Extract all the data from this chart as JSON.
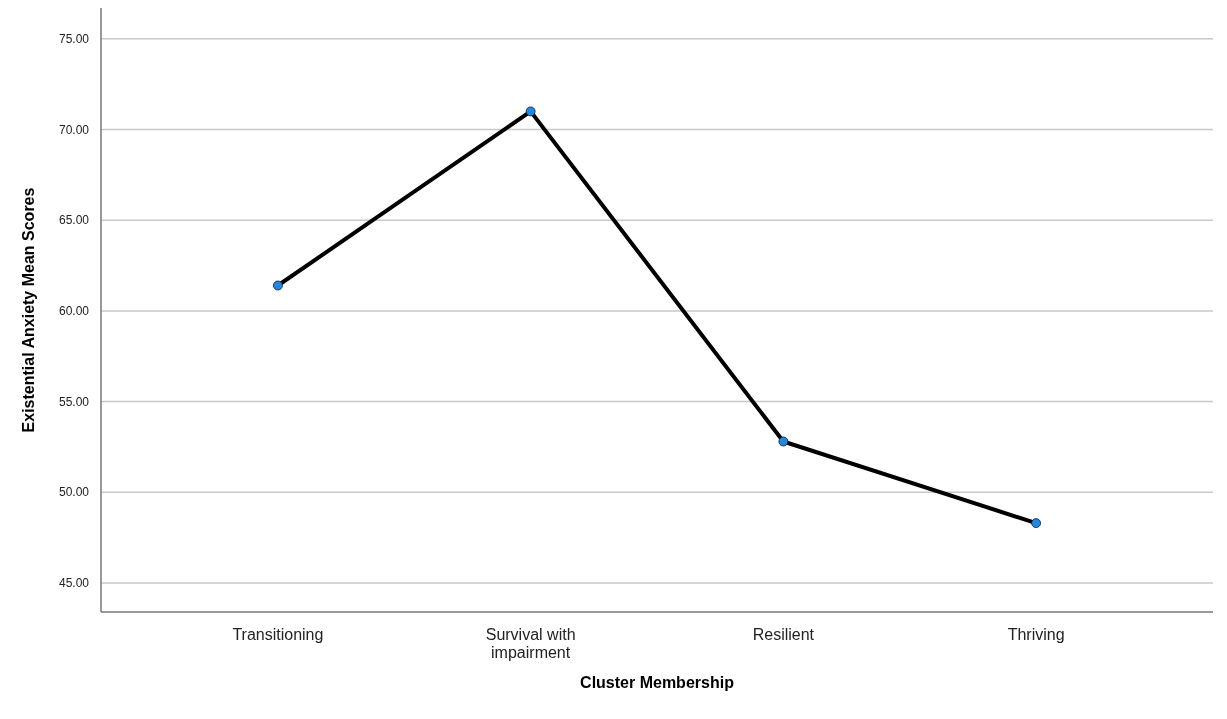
{
  "chart_data": {
    "type": "line",
    "xlabel": "Cluster Membership",
    "ylabel": "Existential Anxiety Mean Scores",
    "categories": [
      "Transitioning",
      "Survival with impairment",
      "Resilient",
      "Thriving"
    ],
    "series": [
      {
        "color": "#000000",
        "colors": [
          "#1e88e5",
          "#1e88e5",
          "#1e88e5",
          "#1e88e5"
        ],
        "values": [
          61.4,
          71.0,
          52.8,
          48.3
        ]
      }
    ],
    "ylim": [
      43.4,
      76.7
    ],
    "yticks": [
      {
        "value": 45,
        "label": "45.00"
      },
      {
        "value": 50,
        "label": "50.00"
      },
      {
        "value": 55,
        "label": "55.00"
      },
      {
        "value": 60,
        "label": "60.00"
      },
      {
        "value": 65,
        "label": "65.00"
      },
      {
        "value": 70,
        "label": "70.00"
      },
      {
        "value": 75,
        "label": "75.00"
      }
    ],
    "grid": "y",
    "marker": "circle",
    "line_style": "solid"
  }
}
